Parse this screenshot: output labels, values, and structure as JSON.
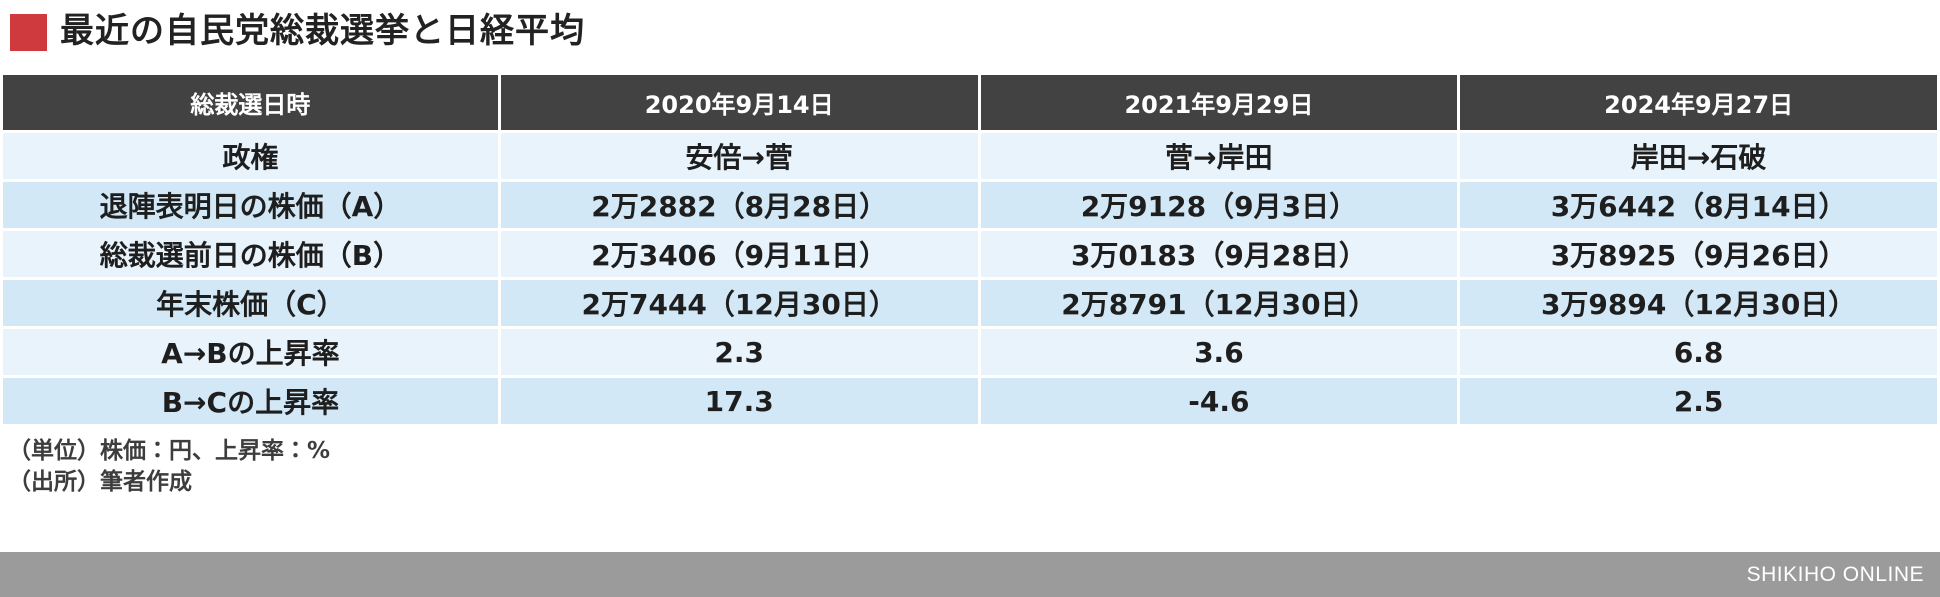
{
  "title": {
    "text": "最近の自民党総裁選挙と日経平均"
  },
  "colors": {
    "accent_red": "#cf3a3f",
    "header_bg": "#424242",
    "row_light": "#e8f3fb",
    "row_dark": "#d2e8f6",
    "footer_bg": "#9b9b9b"
  },
  "table": {
    "headers": [
      "総裁選日時",
      "2020年9月14日",
      "2021年9月29日",
      "2024年9月27日"
    ],
    "rows": [
      [
        "政権",
        "安倍→菅",
        "菅→岸田",
        "岸田→石破"
      ],
      [
        "退陣表明日の株価（A）",
        "2万2882（8月28日）",
        "2万9128（9月3日）",
        "3万6442（8月14日）"
      ],
      [
        "総裁選前日の株価（B）",
        "2万3406（9月11日）",
        "3万0183（9月28日）",
        "3万8925（9月26日）"
      ],
      [
        "年末株価（C）",
        "2万7444（12月30日）",
        "2万8791（12月30日）",
        "3万9894（12月30日）"
      ],
      [
        "A→Bの上昇率",
        "2.3",
        "3.6",
        "6.8"
      ],
      [
        "B→Cの上昇率",
        "17.3",
        "-4.6",
        "2.5"
      ]
    ]
  },
  "footnotes": [
    "（単位）株価：円、上昇率：%",
    "（出所）筆者作成"
  ],
  "footer": {
    "brand": "SHIKIHO ONLINE"
  },
  "chart_data": {
    "type": "table",
    "title": "最近の自民党総裁選挙と日経平均",
    "columns": [
      "総裁選日時",
      "2020年9月14日",
      "2021年9月29日",
      "2024年9月27日"
    ],
    "rows": [
      {
        "label": "政権",
        "values": [
          "安倍→菅",
          "菅→岸田",
          "岸田→石破"
        ]
      },
      {
        "label": "退陣表明日の株価（A）",
        "values": [
          "2万2882（8月28日）",
          "2万9128（9月3日）",
          "3万6442（8月14日）"
        ]
      },
      {
        "label": "総裁選前日の株価（B）",
        "values": [
          "2万3406（9月11日）",
          "3万0183（9月28日）",
          "3万8925（9月26日）"
        ]
      },
      {
        "label": "年末株価（C）",
        "values": [
          "2万7444（12月30日）",
          "2万8791（12月30日）",
          "3万9894（12月30日）"
        ]
      },
      {
        "label": "A→Bの上昇率",
        "values": [
          2.3,
          3.6,
          6.8
        ]
      },
      {
        "label": "B→Cの上昇率",
        "values": [
          17.3,
          -4.6,
          2.5
        ]
      }
    ],
    "numeric_values": {
      "stock_price_at_resignation_A": [
        22882,
        29128,
        36442
      ],
      "stock_price_day_before_election_B": [
        23406,
        30183,
        38925
      ],
      "year_end_stock_price_C": [
        27444,
        28791,
        39894
      ],
      "rise_rate_A_to_B_pct": [
        2.3,
        3.6,
        6.8
      ],
      "rise_rate_B_to_C_pct": [
        17.3,
        -4.6,
        2.5
      ]
    },
    "notes": [
      "（単位）株価：円、上昇率：%",
      "（出所）筆者作成"
    ]
  }
}
